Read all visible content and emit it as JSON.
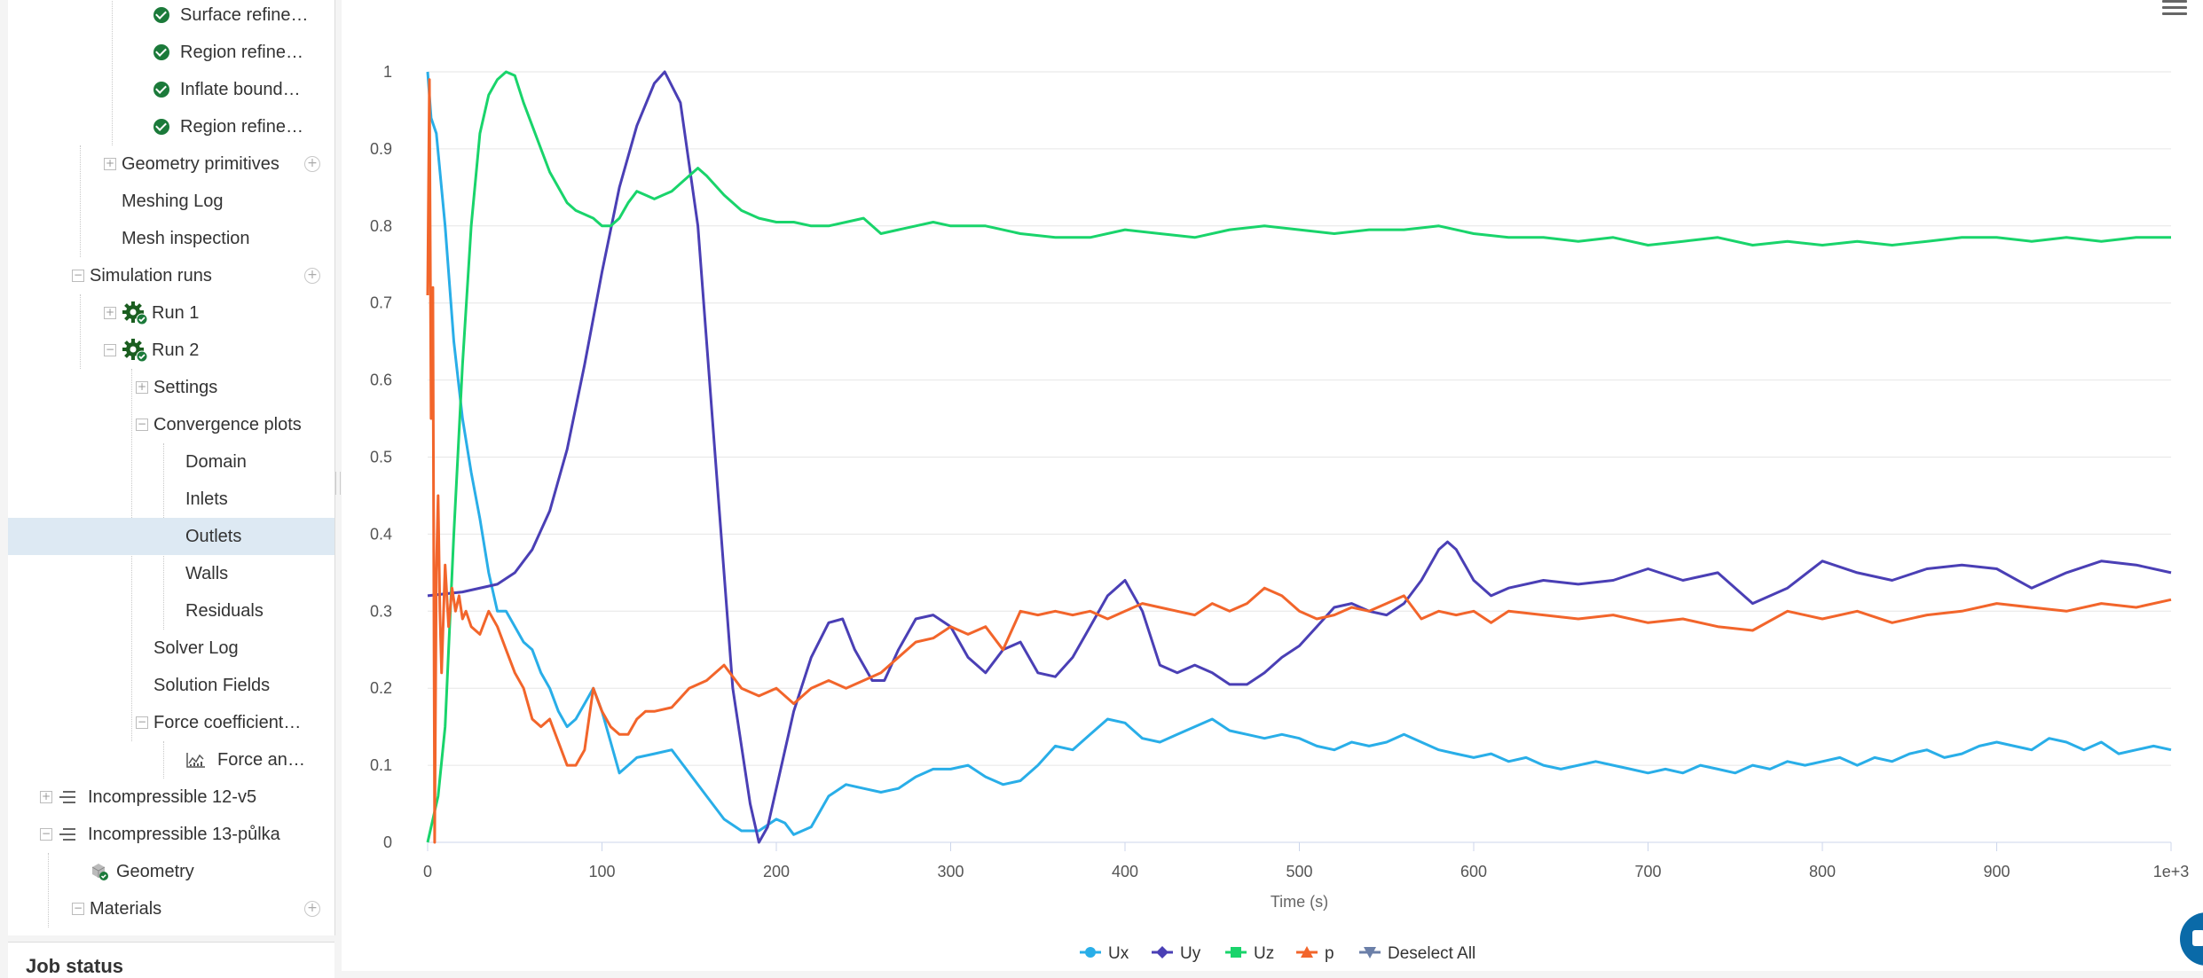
{
  "sidebar": {
    "items": [
      {
        "label": "Surface refinem…",
        "icon": "check-circle-icon",
        "indent": 4
      },
      {
        "label": "Region refineme…",
        "icon": "check-circle-icon",
        "indent": 4
      },
      {
        "label": "Inflate boundary…",
        "icon": "check-circle-icon",
        "indent": 4
      },
      {
        "label": "Region refineme…",
        "icon": "check-circle-icon",
        "indent": 4
      },
      {
        "label": "Geometry primitives",
        "toggle": "+",
        "add": true,
        "indent": 3
      },
      {
        "label": "Meshing Log",
        "indent": 3
      },
      {
        "label": "Mesh inspection",
        "indent": 3
      },
      {
        "label": "Simulation runs",
        "toggle": "−",
        "add": true,
        "indent": 2
      },
      {
        "label": "Run 1",
        "toggle": "+",
        "icon": "gear-check-icon",
        "indent": 3
      },
      {
        "label": "Run 2",
        "toggle": "−",
        "icon": "gear-check-icon",
        "indent": 3
      },
      {
        "label": "Settings",
        "toggle": "+",
        "indent": 4
      },
      {
        "label": "Convergence plots",
        "toggle": "−",
        "indent": 4
      },
      {
        "label": "Domain",
        "indent": 5
      },
      {
        "label": "Inlets",
        "indent": 5
      },
      {
        "label": "Outlets",
        "indent": 5,
        "selected": true
      },
      {
        "label": "Walls",
        "indent": 5
      },
      {
        "label": "Residuals",
        "indent": 5
      },
      {
        "label": "Solver Log",
        "indent": 4
      },
      {
        "label": "Solution Fields",
        "indent": 4
      },
      {
        "label": "Force coefficients plot",
        "toggle": "−",
        "indent": 4
      },
      {
        "label": "Force and m…",
        "icon": "plot-icon",
        "indent": 5
      },
      {
        "label": "Incompressible 12-v5",
        "toggle": "+",
        "icon": "lines-icon",
        "indent": 1
      },
      {
        "label": "Incompressible 13-půlka",
        "toggle": "−",
        "icon": "lines-icon",
        "indent": 1
      },
      {
        "label": "Geometry",
        "icon": "cube-check-icon",
        "indent": 2
      },
      {
        "label": "Materials",
        "toggle": "−",
        "add": true,
        "indent": 2
      }
    ]
  },
  "job_status": {
    "title": "Job status"
  },
  "colors": {
    "ux": "#29aee8",
    "uy": "#4a3fb5",
    "uz": "#19d46b",
    "p": "#f2652b",
    "deselect": "#6b7fa8"
  },
  "legend": {
    "deselect_all": "Deselect All"
  },
  "chart_data": {
    "type": "line",
    "xlabel": "Time (s)",
    "ylabel": "",
    "xlim": [
      0,
      1000
    ],
    "ylim": [
      0,
      1
    ],
    "x_ticks": [
      0,
      100,
      200,
      300,
      400,
      500,
      600,
      700,
      800,
      900,
      1000
    ],
    "x_tick_labels": [
      "0",
      "100",
      "200",
      "300",
      "400",
      "500",
      "600",
      "700",
      "800",
      "900",
      "1e+3"
    ],
    "y_ticks": [
      0,
      0.1,
      0.2,
      0.3,
      0.4,
      0.5,
      0.6,
      0.7,
      0.8,
      0.9,
      1
    ],
    "y_tick_labels": [
      "0",
      "0.1",
      "0.2",
      "0.3",
      "0.4",
      "0.5",
      "0.6",
      "0.7",
      "0.8",
      "0.9",
      "1"
    ],
    "grid": true,
    "legend_position": "bottom",
    "series": [
      {
        "name": "Ux",
        "marker": "circle",
        "x": [
          0,
          2,
          5,
          10,
          15,
          20,
          25,
          30,
          35,
          40,
          45,
          50,
          55,
          60,
          65,
          70,
          75,
          80,
          85,
          90,
          95,
          100,
          105,
          110,
          115,
          120,
          130,
          140,
          150,
          160,
          170,
          180,
          190,
          200,
          205,
          210,
          220,
          230,
          240,
          250,
          260,
          270,
          280,
          290,
          300,
          310,
          320,
          330,
          340,
          350,
          360,
          370,
          380,
          390,
          400,
          410,
          420,
          430,
          440,
          450,
          460,
          470,
          480,
          490,
          500,
          510,
          520,
          530,
          540,
          550,
          560,
          570,
          580,
          590,
          600,
          610,
          620,
          630,
          640,
          650,
          660,
          670,
          680,
          690,
          700,
          710,
          720,
          730,
          740,
          750,
          760,
          770,
          780,
          790,
          800,
          810,
          820,
          830,
          840,
          850,
          860,
          870,
          880,
          890,
          900,
          910,
          920,
          930,
          940,
          950,
          960,
          970,
          980,
          990,
          1000
        ],
        "y": [
          1,
          0.94,
          0.92,
          0.8,
          0.65,
          0.55,
          0.48,
          0.42,
          0.35,
          0.3,
          0.3,
          0.28,
          0.26,
          0.25,
          0.22,
          0.2,
          0.17,
          0.15,
          0.16,
          0.18,
          0.2,
          0.17,
          0.13,
          0.09,
          0.1,
          0.11,
          0.115,
          0.12,
          0.09,
          0.06,
          0.03,
          0.015,
          0.015,
          0.03,
          0.025,
          0.01,
          0.02,
          0.06,
          0.075,
          0.07,
          0.065,
          0.07,
          0.085,
          0.095,
          0.095,
          0.1,
          0.085,
          0.075,
          0.08,
          0.1,
          0.125,
          0.12,
          0.14,
          0.16,
          0.155,
          0.135,
          0.13,
          0.14,
          0.15,
          0.16,
          0.145,
          0.14,
          0.135,
          0.14,
          0.135,
          0.125,
          0.12,
          0.13,
          0.125,
          0.13,
          0.14,
          0.13,
          0.12,
          0.115,
          0.11,
          0.115,
          0.105,
          0.11,
          0.1,
          0.095,
          0.1,
          0.105,
          0.1,
          0.095,
          0.09,
          0.095,
          0.09,
          0.1,
          0.095,
          0.09,
          0.1,
          0.095,
          0.105,
          0.1,
          0.105,
          0.11,
          0.1,
          0.11,
          0.105,
          0.115,
          0.12,
          0.11,
          0.115,
          0.125,
          0.13,
          0.125,
          0.12,
          0.135,
          0.13,
          0.12,
          0.13,
          0.115,
          0.12,
          0.125,
          0.12
        ]
      },
      {
        "name": "Uy",
        "marker": "diamond",
        "x": [
          0,
          20,
          40,
          50,
          60,
          70,
          80,
          90,
          100,
          110,
          120,
          130,
          136,
          145,
          155,
          165,
          175,
          185,
          190,
          195,
          200,
          210,
          220,
          230,
          238,
          245,
          255,
          262,
          270,
          280,
          290,
          300,
          310,
          320,
          330,
          340,
          350,
          360,
          370,
          380,
          390,
          400,
          410,
          420,
          430,
          440,
          450,
          460,
          470,
          480,
          490,
          500,
          510,
          520,
          530,
          540,
          550,
          560,
          570,
          580,
          585,
          590,
          600,
          610,
          620,
          640,
          660,
          680,
          700,
          720,
          740,
          760,
          780,
          800,
          820,
          840,
          860,
          880,
          900,
          920,
          940,
          960,
          980,
          1000
        ],
        "y": [
          0.32,
          0.325,
          0.335,
          0.35,
          0.38,
          0.43,
          0.51,
          0.62,
          0.74,
          0.85,
          0.93,
          0.985,
          1,
          0.96,
          0.8,
          0.5,
          0.2,
          0.05,
          0,
          0.02,
          0.07,
          0.17,
          0.24,
          0.285,
          0.29,
          0.25,
          0.21,
          0.21,
          0.25,
          0.29,
          0.295,
          0.28,
          0.24,
          0.22,
          0.25,
          0.26,
          0.22,
          0.215,
          0.24,
          0.28,
          0.32,
          0.34,
          0.3,
          0.23,
          0.22,
          0.23,
          0.22,
          0.205,
          0.205,
          0.22,
          0.24,
          0.255,
          0.28,
          0.305,
          0.31,
          0.3,
          0.295,
          0.31,
          0.34,
          0.38,
          0.39,
          0.38,
          0.34,
          0.32,
          0.33,
          0.34,
          0.335,
          0.34,
          0.355,
          0.34,
          0.35,
          0.31,
          0.33,
          0.365,
          0.35,
          0.34,
          0.355,
          0.36,
          0.355,
          0.33,
          0.35,
          0.365,
          0.36,
          0.35
        ]
      },
      {
        "name": "Uz",
        "marker": "square",
        "x": [
          0,
          3,
          6,
          10,
          15,
          20,
          25,
          30,
          35,
          40,
          45,
          50,
          55,
          60,
          65,
          70,
          75,
          80,
          85,
          90,
          95,
          100,
          105,
          110,
          115,
          120,
          125,
          130,
          135,
          140,
          145,
          150,
          155,
          160,
          170,
          180,
          190,
          200,
          210,
          220,
          230,
          240,
          250,
          260,
          270,
          280,
          290,
          300,
          320,
          340,
          360,
          380,
          400,
          420,
          440,
          460,
          480,
          500,
          520,
          540,
          560,
          580,
          600,
          620,
          640,
          660,
          680,
          700,
          720,
          740,
          760,
          780,
          800,
          820,
          840,
          860,
          880,
          900,
          920,
          940,
          960,
          980,
          1000
        ],
        "y": [
          0,
          0.03,
          0.06,
          0.15,
          0.4,
          0.62,
          0.8,
          0.92,
          0.97,
          0.99,
          1,
          0.995,
          0.96,
          0.93,
          0.9,
          0.87,
          0.85,
          0.83,
          0.82,
          0.815,
          0.81,
          0.8,
          0.8,
          0.81,
          0.83,
          0.845,
          0.84,
          0.835,
          0.84,
          0.845,
          0.855,
          0.865,
          0.875,
          0.865,
          0.84,
          0.82,
          0.81,
          0.805,
          0.805,
          0.8,
          0.8,
          0.805,
          0.81,
          0.79,
          0.795,
          0.8,
          0.805,
          0.8,
          0.8,
          0.79,
          0.785,
          0.785,
          0.795,
          0.79,
          0.785,
          0.795,
          0.8,
          0.795,
          0.79,
          0.795,
          0.795,
          0.8,
          0.79,
          0.785,
          0.785,
          0.78,
          0.785,
          0.775,
          0.78,
          0.785,
          0.775,
          0.78,
          0.775,
          0.78,
          0.775,
          0.78,
          0.785,
          0.785,
          0.78,
          0.785,
          0.78,
          0.785,
          0.785
        ]
      },
      {
        "name": "p",
        "marker": "triangle",
        "x": [
          0,
          1,
          2,
          3,
          4,
          5,
          6,
          7,
          8,
          10,
          12,
          14,
          16,
          18,
          20,
          22,
          25,
          30,
          35,
          40,
          45,
          50,
          55,
          60,
          65,
          70,
          75,
          80,
          85,
          90,
          95,
          100,
          105,
          110,
          115,
          120,
          125,
          130,
          140,
          150,
          160,
          170,
          180,
          190,
          200,
          210,
          220,
          230,
          240,
          250,
          260,
          270,
          280,
          290,
          300,
          310,
          320,
          330,
          340,
          350,
          360,
          370,
          380,
          390,
          400,
          410,
          420,
          430,
          440,
          450,
          460,
          470,
          480,
          490,
          500,
          510,
          520,
          530,
          540,
          550,
          560,
          570,
          580,
          590,
          600,
          610,
          620,
          640,
          660,
          680,
          700,
          720,
          740,
          760,
          780,
          800,
          820,
          840,
          860,
          880,
          900,
          920,
          940,
          960,
          980,
          1000
        ],
        "y": [
          0.71,
          0.99,
          0.55,
          0.72,
          0.0,
          0.35,
          0.45,
          0.3,
          0.22,
          0.36,
          0.28,
          0.33,
          0.3,
          0.32,
          0.29,
          0.3,
          0.28,
          0.27,
          0.3,
          0.28,
          0.25,
          0.22,
          0.2,
          0.16,
          0.15,
          0.16,
          0.13,
          0.1,
          0.1,
          0.12,
          0.2,
          0.17,
          0.15,
          0.14,
          0.14,
          0.16,
          0.17,
          0.17,
          0.175,
          0.2,
          0.21,
          0.23,
          0.2,
          0.19,
          0.2,
          0.18,
          0.2,
          0.21,
          0.2,
          0.21,
          0.22,
          0.24,
          0.26,
          0.265,
          0.28,
          0.27,
          0.28,
          0.25,
          0.3,
          0.295,
          0.3,
          0.295,
          0.3,
          0.29,
          0.3,
          0.31,
          0.305,
          0.3,
          0.295,
          0.31,
          0.3,
          0.31,
          0.33,
          0.32,
          0.3,
          0.29,
          0.295,
          0.305,
          0.3,
          0.31,
          0.32,
          0.29,
          0.3,
          0.295,
          0.3,
          0.285,
          0.3,
          0.295,
          0.29,
          0.295,
          0.285,
          0.29,
          0.28,
          0.275,
          0.3,
          0.29,
          0.3,
          0.285,
          0.295,
          0.3,
          0.31,
          0.305,
          0.3,
          0.31,
          0.305,
          0.315
        ]
      }
    ]
  }
}
